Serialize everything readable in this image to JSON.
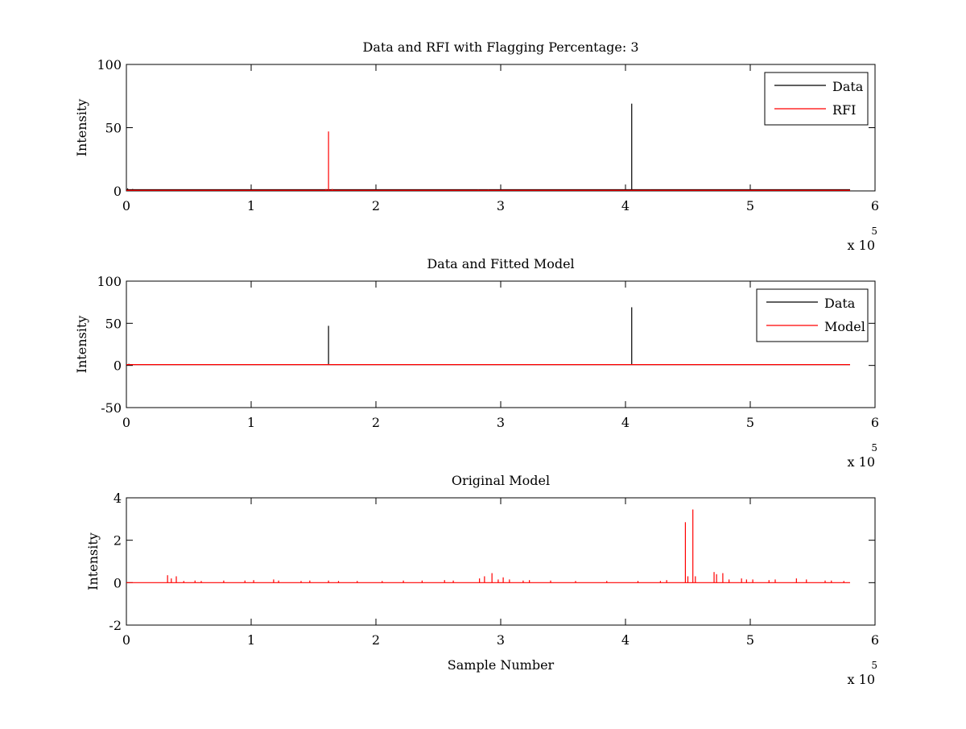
{
  "figure": {
    "background": "#ffffff"
  },
  "colors": {
    "data": "#000000",
    "rfi": "#ff0000",
    "model": "#ff0000",
    "axes": "#000000"
  },
  "chart_data": [
    {
      "type": "line",
      "title": "Data and RFI with Flagging Percentage: 3",
      "xlabel": "",
      "ylabel": "Intensity",
      "xlim": [
        0,
        600000
      ],
      "ylim": [
        0,
        100
      ],
      "x_multiplier_label": "x 10",
      "x_multiplier_exponent": "5",
      "xticks": [
        0,
        100000,
        200000,
        300000,
        400000,
        500000,
        600000
      ],
      "xtick_labels": [
        "0",
        "1",
        "2",
        "3",
        "4",
        "5",
        "6"
      ],
      "yticks": [
        0,
        50,
        100
      ],
      "ytick_labels": [
        "0",
        "50",
        "100"
      ],
      "grid": false,
      "legend": {
        "placement": "top-right",
        "entries": [
          "Data",
          "RFI"
        ]
      },
      "series": [
        {
          "name": "Data",
          "color": "#000000",
          "baseline": 1,
          "x_end": 580000,
          "spikes": [
            [
              1000,
              2
            ],
            [
              5000,
              1.5
            ],
            [
              12000,
              1.2
            ],
            [
              21000,
              1.0
            ],
            [
              405000,
              69
            ],
            [
              570000,
              1.2
            ]
          ]
        },
        {
          "name": "RFI",
          "color": "#ff0000",
          "baseline": 0.5,
          "x_end": 580000,
          "spikes": [
            [
              160000,
              1.5
            ],
            [
              162000,
              47
            ],
            [
              165000,
              1.5
            ],
            [
              282000,
              1.0
            ],
            [
              290000,
              1.0
            ],
            [
              420000,
              0.8
            ]
          ]
        }
      ]
    },
    {
      "type": "line",
      "title": "Data and Fitted Model",
      "xlabel": "",
      "ylabel": "Intensity",
      "xlim": [
        0,
        600000
      ],
      "ylim": [
        -50,
        100
      ],
      "x_multiplier_label": "x 10",
      "x_multiplier_exponent": "5",
      "xticks": [
        0,
        100000,
        200000,
        300000,
        400000,
        500000,
        600000
      ],
      "xtick_labels": [
        "0",
        "1",
        "2",
        "3",
        "4",
        "5",
        "6"
      ],
      "yticks": [
        -50,
        0,
        50,
        100
      ],
      "ytick_labels": [
        "-50",
        "0",
        "50",
        "100"
      ],
      "grid": false,
      "legend": {
        "placement": "top-right",
        "entries": [
          "Data",
          "Model"
        ]
      },
      "series": [
        {
          "name": "Data",
          "color": "#000000",
          "baseline": 1,
          "x_end": 580000,
          "spikes": [
            [
              2000,
              2
            ],
            [
              6000,
              1.5
            ],
            [
              162000,
              47
            ],
            [
              405000,
              69
            ]
          ]
        },
        {
          "name": "Model",
          "color": "#ff0000",
          "baseline": 1,
          "x_end": 580000,
          "spikes": []
        }
      ]
    },
    {
      "type": "line",
      "title": "Original Model",
      "xlabel": "Sample Number",
      "ylabel": "Intensity",
      "xlim": [
        0,
        600000
      ],
      "ylim": [
        -2,
        4
      ],
      "x_multiplier_label": "x 10",
      "x_multiplier_exponent": "5",
      "xticks": [
        0,
        100000,
        200000,
        300000,
        400000,
        500000,
        600000
      ],
      "xtick_labels": [
        "0",
        "1",
        "2",
        "3",
        "4",
        "5",
        "6"
      ],
      "yticks": [
        -2,
        0,
        2,
        4
      ],
      "ytick_labels": [
        "-2",
        "0",
        "2",
        "4"
      ],
      "grid": false,
      "legend": null,
      "series": [
        {
          "color": "#ff0000",
          "baseline": 0,
          "x_end": 580000,
          "spikes": [
            [
              33000,
              0.35
            ],
            [
              36000,
              0.2
            ],
            [
              40000,
              0.3
            ],
            [
              46000,
              0.08
            ],
            [
              55000,
              0.1
            ],
            [
              60000,
              0.08
            ],
            [
              78000,
              0.1
            ],
            [
              95000,
              0.1
            ],
            [
              102000,
              0.12
            ],
            [
              118000,
              0.15
            ],
            [
              122000,
              0.1
            ],
            [
              140000,
              0.08
            ],
            [
              147000,
              0.1
            ],
            [
              162000,
              0.1
            ],
            [
              170000,
              0.08
            ],
            [
              185000,
              0.08
            ],
            [
              205000,
              0.08
            ],
            [
              222000,
              0.1
            ],
            [
              237000,
              0.1
            ],
            [
              255000,
              0.12
            ],
            [
              262000,
              0.1
            ],
            [
              283000,
              0.2
            ],
            [
              287000,
              0.3
            ],
            [
              293000,
              0.45
            ],
            [
              298000,
              0.15
            ],
            [
              302000,
              0.25
            ],
            [
              307000,
              0.15
            ],
            [
              318000,
              0.1
            ],
            [
              323000,
              0.12
            ],
            [
              340000,
              0.1
            ],
            [
              360000,
              0.08
            ],
            [
              385000,
              0.08
            ],
            [
              410000,
              0.08
            ],
            [
              428000,
              0.08
            ],
            [
              433000,
              0.12
            ],
            [
              448000,
              2.85
            ],
            [
              450000,
              0.3
            ],
            [
              454000,
              3.45
            ],
            [
              456000,
              0.3
            ],
            [
              471000,
              0.5
            ],
            [
              473000,
              0.4
            ],
            [
              478000,
              0.45
            ],
            [
              483000,
              0.15
            ],
            [
              493000,
              0.2
            ],
            [
              497000,
              0.15
            ],
            [
              502000,
              0.15
            ],
            [
              515000,
              0.12
            ],
            [
              520000,
              0.15
            ],
            [
              537000,
              0.2
            ],
            [
              545000,
              0.15
            ],
            [
              560000,
              0.1
            ],
            [
              565000,
              0.1
            ],
            [
              575000,
              0.08
            ]
          ]
        }
      ]
    }
  ]
}
